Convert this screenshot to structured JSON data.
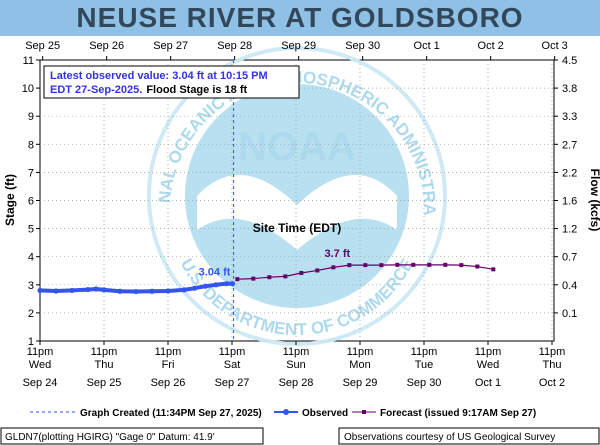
{
  "colors": {
    "header_bg": "#8fc1e6",
    "title": "#33475b",
    "observed": "#3355ee",
    "forecast": "#660066",
    "grid": "#999999",
    "watermark": "#b5dff0",
    "info_blue": "#3333dd"
  },
  "header": {
    "title": "NEUSE RIVER AT GOLDSBORO"
  },
  "info_box": {
    "line1": "Latest observed value: 3.04 ft at 10:15 PM",
    "line2_blue": "EDT 27-Sep-2025.",
    "line2_black": "Flood Stage is 18 ft"
  },
  "watermark": {
    "logo_text": "NOAA",
    "ring_top": "NATIONAL OCEANIC AND ATMOSPHERIC ADMINISTRATION",
    "ring_bottom": "U.S. DEPARTMENT OF COMMERCE"
  },
  "legend": {
    "graph_created": "Graph Created (11:34PM Sep 27, 2025)",
    "observed": "Observed",
    "forecast": "Forecast (issued 9:17AM Sep 27)"
  },
  "footer": {
    "left": "GLDN7(plotting HGIRG) \"Gage 0\" Datum: 41.9'",
    "right": "Observations courtesy of US Geological Survey"
  },
  "chart_data": {
    "type": "line",
    "title": "NEUSE RIVER AT GOLDSBORO",
    "xlabel": "Site Time (EDT)",
    "ylabel": "Stage (ft)",
    "y2label": "Flow (kcfs)",
    "ylim": [
      1,
      11
    ],
    "yticks": [
      1,
      2,
      3,
      4,
      5,
      6,
      7,
      8,
      9,
      10,
      11
    ],
    "y2ticks": [
      {
        "label": "0.1",
        "stage": 2.0
      },
      {
        "label": "0.4",
        "stage": 3.0
      },
      {
        "label": "0.7",
        "stage": 4.0
      },
      {
        "label": "1.2",
        "stage": 5.0
      },
      {
        "label": "1.6",
        "stage": 6.0
      },
      {
        "label": "2.2",
        "stage": 7.0
      },
      {
        "label": "2.7",
        "stage": 8.0
      },
      {
        "label": "3.3",
        "stage": 9.0
      },
      {
        "label": "3.8",
        "stage": 10.0
      },
      {
        "label": "4.5",
        "stage": 11.0
      }
    ],
    "x_range_hours": [
      0,
      168
    ],
    "bottom_ticks": [
      {
        "t": 0,
        "line1": "11pm",
        "line2": "Wed",
        "line3": "Sep 24"
      },
      {
        "t": 24,
        "line1": "11pm",
        "line2": "Thu",
        "line3": "Sep 25"
      },
      {
        "t": 48,
        "line1": "11pm",
        "line2": "Fri",
        "line3": "Sep 26"
      },
      {
        "t": 72,
        "line1": "11pm",
        "line2": "Sat",
        "line3": "Sep 27"
      },
      {
        "t": 96,
        "line1": "11pm",
        "line2": "Sun",
        "line3": "Sep 28"
      },
      {
        "t": 120,
        "line1": "11pm",
        "line2": "Mon",
        "line3": "Sep 29"
      },
      {
        "t": 144,
        "line1": "11pm",
        "line2": "Tue",
        "line3": "Sep 30"
      },
      {
        "t": 168,
        "line1": "11pm",
        "line2": "Wed",
        "line3": "Oct 1"
      },
      {
        "t": 192,
        "line1": "11pm",
        "line2": "Thu",
        "line3": "Oct 2"
      }
    ],
    "top_ticks": [
      {
        "t": 1,
        "label": "Sep 25"
      },
      {
        "t": 25,
        "label": "Sep 26"
      },
      {
        "t": 49,
        "label": "Sep 27"
      },
      {
        "t": 73,
        "label": "Sep 28"
      },
      {
        "t": 97,
        "label": "Sep 29"
      },
      {
        "t": 121,
        "label": "Sep 30"
      },
      {
        "t": 145,
        "label": "Oct 1"
      },
      {
        "t": 169,
        "label": "Oct 2"
      },
      {
        "t": 193,
        "label": "Oct 3"
      }
    ],
    "graph_created_t": 72.6,
    "observed": {
      "name": "Observed",
      "t": [
        0,
        6,
        12,
        18,
        21,
        24,
        30,
        36,
        42,
        48,
        54,
        58,
        62,
        66,
        70,
        72.2
      ],
      "stage": [
        2.8,
        2.78,
        2.8,
        2.83,
        2.85,
        2.82,
        2.77,
        2.76,
        2.77,
        2.78,
        2.82,
        2.88,
        2.95,
        3.0,
        3.04,
        3.04
      ]
    },
    "forecast": {
      "name": "Forecast",
      "t": [
        74,
        80,
        86,
        92,
        98,
        104,
        110,
        116,
        122,
        128,
        134,
        140,
        146,
        152,
        158,
        164,
        170
      ],
      "stage": [
        3.2,
        3.22,
        3.27,
        3.3,
        3.42,
        3.51,
        3.62,
        3.7,
        3.7,
        3.7,
        3.71,
        3.71,
        3.71,
        3.71,
        3.7,
        3.65,
        3.55
      ]
    },
    "annotations": [
      {
        "text": "3.04 ft",
        "series": "observed",
        "t": 72.2,
        "stage": 3.04
      },
      {
        "text": "3.7 ft",
        "series": "forecast",
        "t": 116,
        "stage": 3.7
      }
    ]
  }
}
